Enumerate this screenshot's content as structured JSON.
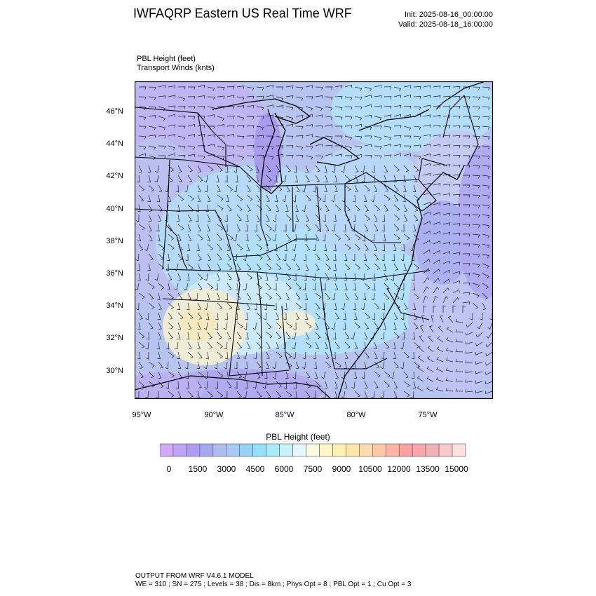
{
  "header": {
    "title": "IWFAQRP Eastern US Real Time WRF",
    "init": "Init: 2025-08-16_00:00:00",
    "valid": "Valid: 2025-08-18_16:00:00"
  },
  "fields": {
    "line1": "PBL Height   (feet)",
    "line2": "Transport Winds   (knts)"
  },
  "map": {
    "lat_labels": [
      "46°N",
      "44°N",
      "42°N",
      "40°N",
      "38°N",
      "36°N",
      "34°N",
      "32°N",
      "30°N"
    ],
    "lat_values": [
      46,
      44,
      42,
      40,
      38,
      36,
      34,
      32,
      30
    ],
    "lon_labels": [
      "95°W",
      "90°W",
      "85°W",
      "80°W",
      "75°W"
    ],
    "lon_values": [
      -95,
      -90,
      -85,
      -80,
      -75
    ],
    "extent": {
      "lon_min": -95.5,
      "lon_max": -70.5,
      "lat_min": 28.5,
      "lat_max": 47.8
    },
    "colors": {
      "border": "#000000",
      "land_base": "#b8c4f0",
      "ocean_base": "#c2c8f5"
    }
  },
  "colorbar": {
    "title": "PBL Height  (feet)",
    "tick_labels": [
      "0",
      "1500",
      "3000",
      "4500",
      "6000",
      "7500",
      "9000",
      "10500",
      "12000",
      "13500",
      "15000"
    ],
    "colors": [
      "#d2a8fa",
      "#c0a2f6",
      "#ae9cf2",
      "#a4a8f0",
      "#b0bcf0",
      "#a6caf6",
      "#96d2f8",
      "#92e0fc",
      "#a8ecfc",
      "#c6f2fc",
      "#e4f8fc",
      "#fbfbe4",
      "#fef6c4",
      "#fef0ae",
      "#fee6a8",
      "#fedcae",
      "#fec8a8",
      "#feb4a4",
      "#fca0a0",
      "#f8a6aa",
      "#f0b0b8",
      "#f8c8cc",
      "#fce0e2"
    ]
  },
  "footer": {
    "line1": "OUTPUT FROM WRF V4.6.1 MODEL",
    "line2": "WE = 310 ; SN = 275 ; Levels = 38 ; Dis = 8km ; Phys Opt = 8 ; PBL Opt = 1 ; Cu Opt = 3"
  }
}
